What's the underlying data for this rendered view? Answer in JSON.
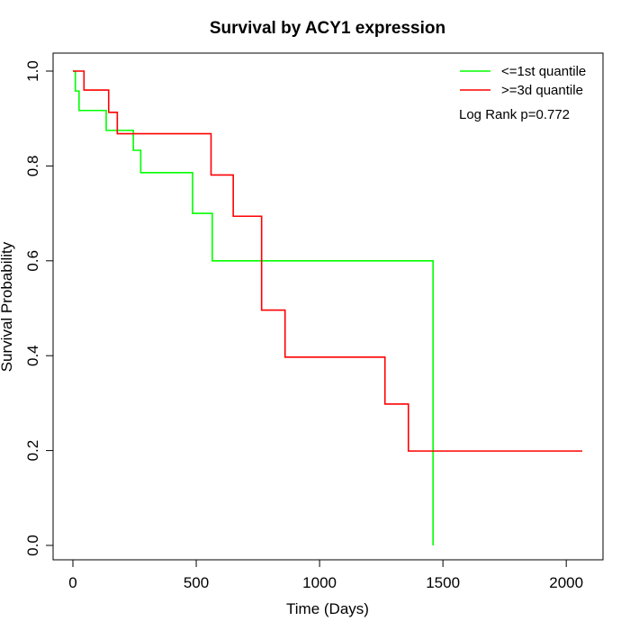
{
  "chart_data": {
    "type": "line",
    "step": true,
    "title": "Survival by ACY1 expression",
    "xlabel": "Time (Days)",
    "ylabel": "Survival Probability",
    "xlim": [
      0,
      2070
    ],
    "ylim": [
      0,
      1
    ],
    "xticks": [
      0,
      500,
      1000,
      1500,
      2000
    ],
    "yticks": [
      0.0,
      0.2,
      0.4,
      0.6,
      0.8,
      1.0
    ],
    "xtick_labels": [
      "0",
      "500",
      "1000",
      "1500",
      "2000"
    ],
    "ytick_labels": [
      "0.0",
      "0.2",
      "0.4",
      "0.6",
      "0.8",
      "1.0"
    ],
    "grid": false,
    "legend_position": "top-right",
    "annotation": "Log Rank p=0.772",
    "series": [
      {
        "name": "<=1st quantile",
        "color": "#00ff00",
        "x": [
          0,
          10,
          25,
          135,
          245,
          275,
          485,
          565,
          1460,
          1460
        ],
        "y": [
          1.0,
          0.958,
          0.917,
          0.875,
          0.833,
          0.786,
          0.7,
          0.6,
          0.6,
          0.0
        ]
      },
      {
        "name": ">=3d quantile",
        "color": "#ff0000",
        "x": [
          0,
          45,
          145,
          180,
          560,
          650,
          765,
          860,
          1265,
          1360,
          2065
        ],
        "y": [
          1.0,
          0.96,
          0.913,
          0.868,
          0.781,
          0.694,
          0.496,
          0.397,
          0.298,
          0.199,
          0.199
        ]
      }
    ]
  }
}
